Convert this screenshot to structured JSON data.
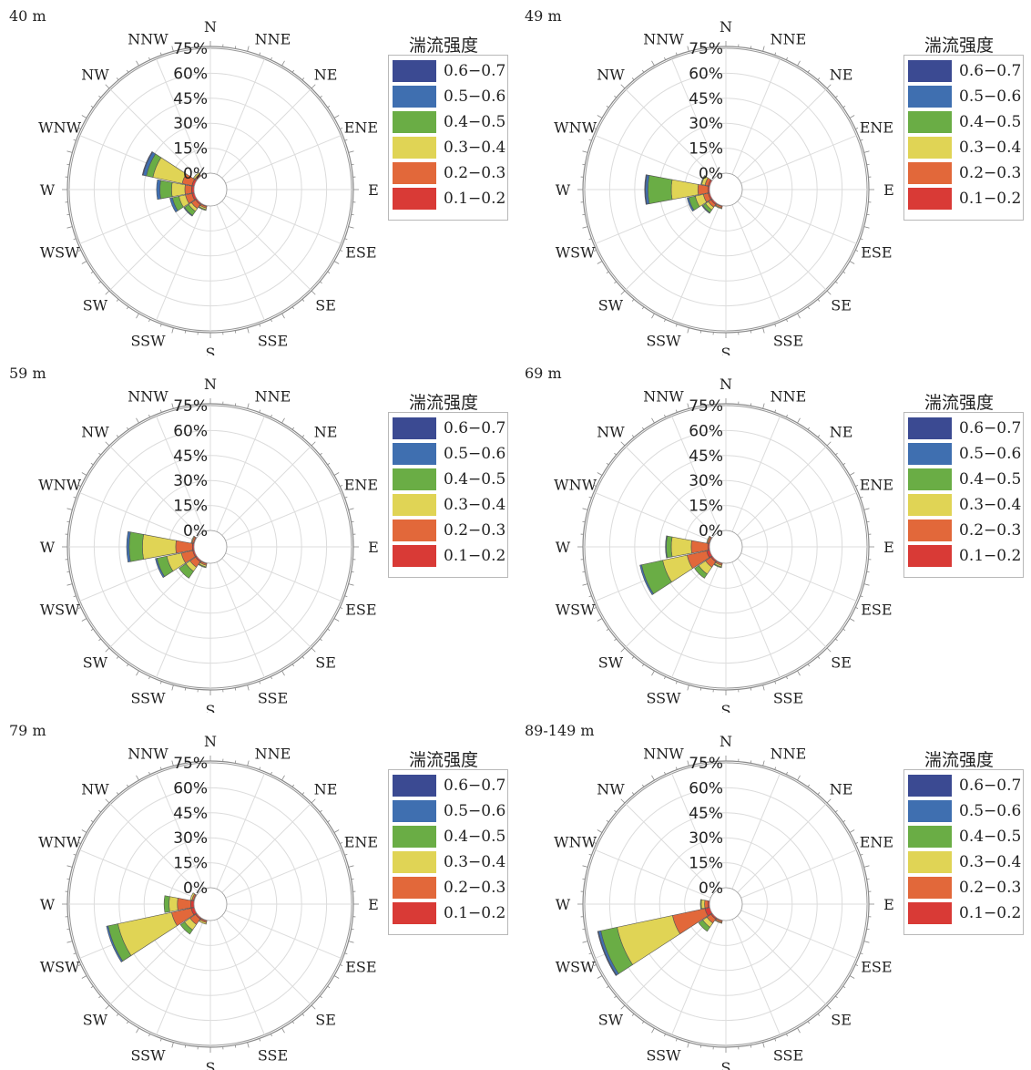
{
  "legend": {
    "title": "湍流强度",
    "items": [
      {
        "label": "0.6−0.7",
        "color": "#3b4a92"
      },
      {
        "label": "0.5−0.6",
        "color": "#3f6fb0"
      },
      {
        "label": "0.4−0.5",
        "color": "#6aad45"
      },
      {
        "label": "0.3−0.4",
        "color": "#e0d455"
      },
      {
        "label": "0.2−0.3",
        "color": "#e2683a"
      },
      {
        "label": "0.1−0.2",
        "color": "#d93a36"
      }
    ]
  },
  "directions": [
    "N",
    "NNE",
    "NE",
    "ENE",
    "E",
    "ESE",
    "SE",
    "SSE",
    "S",
    "SSW",
    "SW",
    "WSW",
    "W",
    "WNW",
    "NW",
    "NNW"
  ],
  "radial_ticks": [
    "0%",
    "15%",
    "30%",
    "45%",
    "60%",
    "75%"
  ],
  "panels": [
    {
      "height": "40 m"
    },
    {
      "height": "49 m"
    },
    {
      "height": "59 m"
    },
    {
      "height": "69 m"
    },
    {
      "height": "79 m"
    },
    {
      "height": "89-149 m"
    }
  ],
  "chart_data": [
    {
      "type": "wind-rose",
      "height": "40 m",
      "rlim": [
        0,
        75
      ],
      "bin_order": [
        "0.1−0.2",
        "0.2−0.3",
        "0.3−0.4",
        "0.4−0.5",
        "0.5−0.6",
        "0.6−0.7"
      ],
      "sectors": {
        "WNW": [
          1.5,
          6,
          18,
          4,
          2,
          0.5
        ],
        "W": [
          1.5,
          4,
          8,
          7,
          2,
          0
        ],
        "WSW": [
          1.5,
          4,
          4,
          4,
          1.5,
          0
        ],
        "SW": [
          1,
          3,
          2,
          3,
          0.5,
          0
        ],
        "SSW": [
          0.5,
          1,
          1,
          0.5,
          0,
          0
        ],
        "NW": [
          0.5,
          1,
          1,
          0,
          0,
          0
        ]
      }
    },
    {
      "type": "wind-rose",
      "height": "49 m",
      "rlim": [
        0,
        75
      ],
      "bin_order": [
        "0.1−0.2",
        "0.2−0.3",
        "0.3−0.4",
        "0.4−0.5",
        "0.5−0.6",
        "0.6−0.7"
      ],
      "sectors": {
        "W": [
          1,
          6,
          16,
          14,
          1.5,
          0.5
        ],
        "WSW": [
          1,
          3,
          5,
          4,
          1,
          0
        ],
        "SW": [
          1,
          2,
          2,
          2,
          0.5,
          0
        ],
        "WNW": [
          1,
          2,
          2,
          0.5,
          0,
          0
        ],
        "SSW": [
          0.5,
          1,
          0.5,
          0,
          0,
          0
        ]
      }
    },
    {
      "type": "wind-rose",
      "height": "59 m",
      "rlim": [
        0,
        75
      ],
      "bin_order": [
        "0.1−0.2",
        "0.2−0.3",
        "0.3−0.4",
        "0.4−0.5",
        "0.5−0.6",
        "0.6−0.7"
      ],
      "sectors": {
        "W": [
          1,
          10,
          20,
          8,
          1.5,
          0
        ],
        "WSW": [
          1,
          7,
          9,
          6,
          1,
          0
        ],
        "SW": [
          1,
          4,
          3,
          5,
          0,
          0
        ],
        "SSW": [
          0.5,
          1,
          1,
          0.5,
          0,
          0
        ],
        "WNW": [
          0.5,
          1,
          0.5,
          0,
          0,
          0
        ]
      }
    },
    {
      "type": "wind-rose",
      "height": "69 m",
      "rlim": [
        0,
        75
      ],
      "bin_order": [
        "0.1−0.2",
        "0.2−0.3",
        "0.3−0.4",
        "0.4−0.5",
        "0.5−0.6",
        "0.6−0.7"
      ],
      "sectors": {
        "WSW": [
          2,
          12,
          15,
          13,
          1,
          0
        ],
        "W": [
          1,
          10,
          12,
          3,
          0.5,
          0
        ],
        "SW": [
          1,
          4,
          5,
          3,
          0,
          0
        ],
        "SSW": [
          0.5,
          1,
          1,
          0.5,
          0,
          0
        ],
        "WNW": [
          0.5,
          1,
          0.5,
          0,
          0,
          0
        ]
      }
    },
    {
      "type": "wind-rose",
      "height": "79 m",
      "rlim": [
        0,
        75
      ],
      "bin_order": [
        "0.1−0.2",
        "0.2−0.3",
        "0.3−0.4",
        "0.4−0.5",
        "0.5−0.6",
        "0.6−0.7"
      ],
      "sectors": {
        "WSW": [
          2,
          12,
          33,
          6,
          1,
          0
        ],
        "W": [
          2,
          8,
          5,
          3,
          0,
          0
        ],
        "SW": [
          1,
          4,
          4,
          3,
          0,
          0
        ],
        "SSW": [
          0.5,
          1,
          1,
          0,
          0,
          0
        ],
        "WNW": [
          0.5,
          1,
          1,
          0,
          0,
          0
        ]
      }
    },
    {
      "type": "wind-rose",
      "height": "89-149 m",
      "rlim": [
        0,
        75
      ],
      "bin_order": [
        "0.1−0.2",
        "0.2−0.3",
        "0.3−0.4",
        "0.4−0.5",
        "0.5−0.6",
        "0.6−0.7"
      ],
      "sectors": {
        "WSW": [
          3,
          20,
          34,
          10,
          1.5,
          0.5
        ],
        "SW": [
          1,
          3,
          3,
          3,
          0,
          0
        ],
        "W": [
          1,
          2,
          2,
          0.5,
          0,
          0
        ],
        "SSW": [
          0.5,
          1,
          0.5,
          0,
          0,
          0
        ]
      }
    }
  ]
}
